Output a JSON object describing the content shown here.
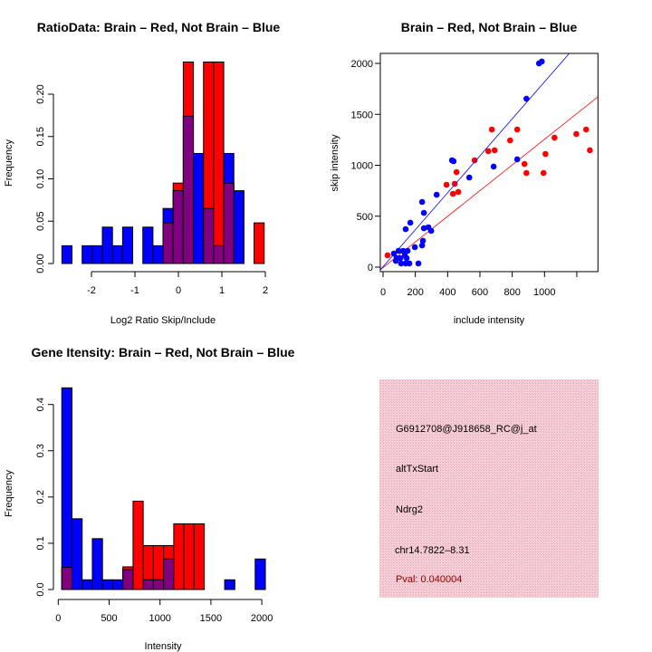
{
  "colors": {
    "blue": "#0000ff",
    "red": "#ff0000",
    "overlap": "#800080",
    "info_bg": "#f4c0cc",
    "pval": "#8b0000"
  },
  "chart_data": [
    {
      "type": "bar",
      "title": "RatioData: Brain – Red, Not Brain – Blue",
      "xlabel": "Log2 Ratio Skip/Include",
      "ylabel": "Frequency",
      "bin_start": -2.68,
      "bin_width": 0.2327,
      "series": [
        {
          "name": "Not Brain",
          "color": "blue",
          "values": [
            0.021,
            0,
            0.021,
            0.021,
            0.043,
            0.021,
            0.043,
            0,
            0.043,
            0.021,
            0.065,
            0.086,
            0.174,
            0.13,
            0.065,
            0.021,
            0.13,
            0.086,
            0,
            0
          ]
        },
        {
          "name": "Brain",
          "color": "red",
          "values": [
            0,
            0,
            0,
            0,
            0,
            0,
            0,
            0,
            0,
            0,
            0.048,
            0.095,
            0.238,
            0,
            0.238,
            0.238,
            0.095,
            0,
            0,
            0.048
          ]
        }
      ],
      "x_ticks": [
        "-2",
        "-1",
        "0",
        "1",
        "2"
      ],
      "x_tick_values": [
        -2,
        -1,
        0,
        1,
        2
      ],
      "y_ticks": [
        "0.00",
        "0.05",
        "0.10",
        "0.15",
        "0.20"
      ],
      "y_tick_values": [
        0,
        0.05,
        0.1,
        0.15,
        0.2
      ],
      "ylim": [
        0,
        0.24
      ]
    },
    {
      "type": "scatter",
      "title": "Brain – Red, Not Brain – Blue",
      "xlabel": "include intensity",
      "ylabel": "skip intensity",
      "xlim": [
        -17,
        1331
      ],
      "ylim": [
        -44,
        2098
      ],
      "x_ticks": [
        "0",
        "200",
        "400",
        "600",
        "800",
        "1000",
        ""
      ],
      "x_tick_values": [
        0,
        200,
        400,
        600,
        800,
        1000,
        1200
      ],
      "y_ticks": [
        "0",
        "500",
        "1000",
        "1500",
        "2000"
      ],
      "y_tick_values": [
        0,
        500,
        1000,
        1500,
        2000
      ],
      "series": [
        {
          "name": "Brain",
          "color": "red",
          "fit": {
            "slope": 1.26,
            "intercept": -5
          },
          "points": [
            [
              28,
              116
            ],
            [
              393,
              809
            ],
            [
              444,
              818
            ],
            [
              433,
              720
            ],
            [
              466,
              738
            ],
            [
              455,
              933
            ],
            [
              567,
              1049
            ],
            [
              652,
              1138
            ],
            [
              691,
              1147
            ],
            [
              674,
              1351
            ],
            [
              787,
              1244
            ],
            [
              831,
              1351
            ],
            [
              876,
              1013
            ],
            [
              888,
              924
            ],
            [
              994,
              924
            ],
            [
              1006,
              1111
            ],
            [
              1062,
              1271
            ],
            [
              1197,
              1307
            ],
            [
              1258,
              1351
            ],
            [
              1281,
              1147
            ]
          ]
        },
        {
          "name": "Not Brain",
          "color": "blue",
          "fit": {
            "slope": 1.815,
            "intercept": 4
          },
          "points": [
            [
              966,
              2000
            ],
            [
              983,
              2018
            ],
            [
              888,
              1653
            ],
            [
              427,
              1049
            ],
            [
              437,
              1040
            ],
            [
              685,
              987
            ],
            [
              831,
              1058
            ],
            [
              534,
              880
            ],
            [
              332,
              711
            ],
            [
              242,
              640
            ],
            [
              253,
              533
            ],
            [
              169,
              436
            ],
            [
              140,
              373
            ],
            [
              253,
              382
            ],
            [
              281,
              391
            ],
            [
              298,
              356
            ],
            [
              247,
              258
            ],
            [
              242,
              213
            ],
            [
              197,
              196
            ],
            [
              219,
              36
            ],
            [
              67,
              133
            ],
            [
              96,
              160
            ],
            [
              124,
              160
            ],
            [
              152,
              160
            ],
            [
              79,
              62
            ],
            [
              107,
              89
            ],
            [
              112,
              36
            ],
            [
              140,
              36
            ],
            [
              163,
              36
            ],
            [
              135,
              116
            ],
            [
              146,
              89
            ],
            [
              84,
              89
            ]
          ]
        }
      ]
    },
    {
      "type": "bar",
      "title": "Gene Itensity: Brain – Red, Not Brain – Blue",
      "xlabel": "Intensity",
      "ylabel": "Frequency",
      "bin_start": 35,
      "bin_width": 100,
      "series": [
        {
          "name": "Not Brain",
          "color": "blue",
          "values": [
            0.436,
            0.153,
            0.021,
            0.11,
            0.021,
            0.021,
            0.043,
            0,
            0.021,
            0.021,
            0.066,
            0,
            0,
            0,
            0,
            0,
            0.021,
            0,
            0,
            0.066
          ]
        },
        {
          "name": "Brain",
          "color": "red",
          "values": [
            0.048,
            0,
            0,
            0,
            0,
            0,
            0.049,
            0.191,
            0.095,
            0.095,
            0.095,
            0.142,
            0.142,
            0.142,
            0,
            0,
            0,
            0,
            0,
            0
          ]
        }
      ],
      "x_ticks": [
        "0",
        "500",
        "1000",
        "1500",
        "2000"
      ],
      "x_tick_values": [
        0,
        500,
        1000,
        1500,
        2000
      ],
      "y_ticks": [
        "0.0",
        "0.1",
        "0.2",
        "0.3",
        "0.4"
      ],
      "y_tick_values": [
        0,
        0.1,
        0.2,
        0.3,
        0.4
      ],
      "ylim": [
        0,
        0.44
      ]
    }
  ],
  "info": {
    "probe": "G6912708@J918658_RC@j_at",
    "event": "altTxStart",
    "gene": "Ndrg2",
    "location": "chr14.7822–8.31",
    "pval": "Pval: 0.040004"
  }
}
